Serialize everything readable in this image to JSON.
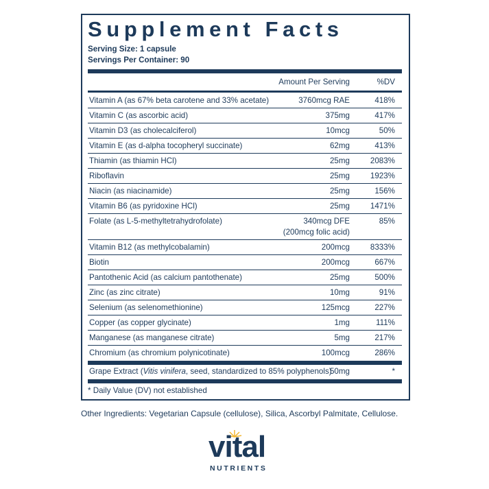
{
  "label": {
    "title": "Supplement Facts",
    "serving_size": "Serving Size: 1 capsule",
    "servings_per_container": "Servings Per Container: 90",
    "header": {
      "amount": "Amount Per Serving",
      "dv": "%DV"
    },
    "rows": [
      {
        "name": "Vitamin A (as 67% beta carotene and 33% acetate)",
        "amount": [
          "3760mcg RAE"
        ],
        "dv": "418%"
      },
      {
        "name": "Vitamin C (as ascorbic acid)",
        "amount": [
          "375mg"
        ],
        "dv": "417%"
      },
      {
        "name": "Vitamin D3 (as cholecalciferol)",
        "amount": [
          "10mcg"
        ],
        "dv": "50%"
      },
      {
        "name": "Vitamin E (as d-alpha tocopheryl succinate)",
        "amount": [
          "62mg"
        ],
        "dv": "413%"
      },
      {
        "name": "Thiamin (as thiamin HCl)",
        "amount": [
          "25mg"
        ],
        "dv": "2083%"
      },
      {
        "name": "Riboflavin",
        "amount": [
          "25mg"
        ],
        "dv": "1923%"
      },
      {
        "name": "Niacin (as niacinamide)",
        "amount": [
          "25mg"
        ],
        "dv": "156%"
      },
      {
        "name": "Vitamin B6 (as pyridoxine HCl)",
        "amount": [
          "25mg"
        ],
        "dv": "1471%"
      },
      {
        "name": "Folate (as L-5-methyltetrahydrofolate)",
        "amount": [
          "340mcg DFE",
          "(200mcg folic acid)"
        ],
        "dv": "85%"
      },
      {
        "name": "Vitamin B12 (as methylcobalamin)",
        "amount": [
          "200mcg"
        ],
        "dv": "8333%"
      },
      {
        "name": "Biotin",
        "amount": [
          "200mcg"
        ],
        "dv": "667%"
      },
      {
        "name": "Pantothenic Acid (as calcium pantothenate)",
        "amount": [
          "25mg"
        ],
        "dv": "500%"
      },
      {
        "name": "Zinc (as zinc citrate)",
        "amount": [
          "10mg"
        ],
        "dv": "91%"
      },
      {
        "name": "Selenium (as selenomethionine)",
        "amount": [
          "125mcg"
        ],
        "dv": "227%"
      },
      {
        "name": "Copper (as copper glycinate)",
        "amount": [
          "1mg"
        ],
        "dv": "111%"
      },
      {
        "name": "Manganese (as manganese citrate)",
        "amount": [
          "5mg"
        ],
        "dv": "217%"
      },
      {
        "name": "Chromium (as chromium polynicotinate)",
        "amount": [
          "100mcg"
        ],
        "dv": "286%"
      }
    ],
    "extract": {
      "name_parts": [
        "Grape Extract (",
        "Vitis vinifera",
        ", seed, standardized to 85% polyphenols)"
      ],
      "amount": "50mg",
      "dv": "*"
    },
    "footnote": "* Daily Value (DV) not established"
  },
  "other_ingredients": "Other Ingredients: Vegetarian Capsule (cellulose), Silica, Ascorbyl Palmitate, Cellulose.",
  "brand": {
    "name": "vital",
    "tagline": "NUTRIENTS"
  }
}
